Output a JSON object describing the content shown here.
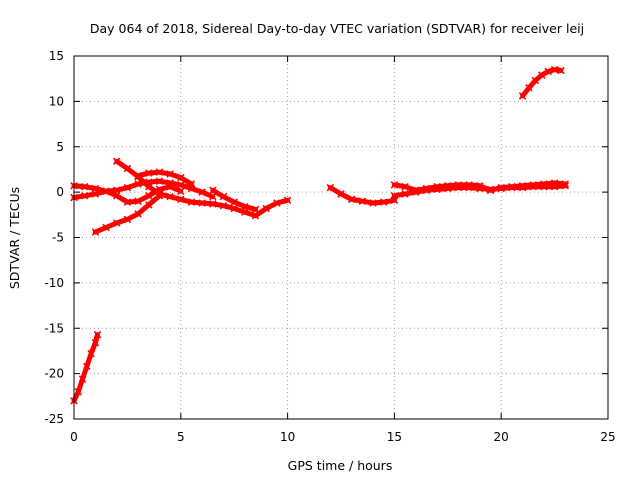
{
  "chart_data": {
    "type": "scatter",
    "title": "Day 064 of 2018, Sidereal Day-to-day VTEC variation (SDTVAR) for receiver leij",
    "xlabel": "GPS time / hours",
    "ylabel": "SDTVAR / TECUs",
    "xlim": [
      0,
      25
    ],
    "ylim": [
      -25,
      15
    ],
    "xticks": [
      "0",
      "5",
      "10",
      "15",
      "20",
      "25"
    ],
    "yticks": [
      "15",
      "10",
      "5",
      "0",
      "-5",
      "-10",
      "-15",
      "-20",
      "-25"
    ],
    "grid": true,
    "marker_color": "#ff0000",
    "series": [
      {
        "x": [
          0.0,
          0.2,
          0.4,
          0.6,
          0.8,
          1.0,
          1.1
        ],
        "y": [
          -23.0,
          -22.0,
          -20.6,
          -19.2,
          -17.8,
          -16.6,
          -15.7
        ]
      },
      {
        "x": [
          1.0,
          1.5,
          2.0,
          2.5,
          3.0,
          3.5,
          4.0
        ],
        "y": [
          -4.4,
          -3.9,
          -3.4,
          -3.0,
          -2.4,
          -1.4,
          -0.4
        ]
      },
      {
        "x": [
          0.0,
          0.5,
          1.0,
          1.5,
          2.0,
          2.5,
          3.0,
          3.5,
          4.0,
          4.5,
          5.0,
          5.5,
          6.0,
          6.5
        ],
        "y": [
          0.7,
          0.6,
          0.4,
          0.1,
          0.2,
          0.5,
          0.9,
          1.1,
          1.2,
          1.0,
          0.8,
          0.4,
          0.0,
          -0.5
        ]
      },
      {
        "x": [
          0.0,
          0.5,
          1.0,
          1.5,
          2.0,
          2.5,
          3.0,
          3.5,
          4.0,
          4.5,
          5.0
        ],
        "y": [
          -0.6,
          -0.4,
          -0.2,
          0.1,
          -0.4,
          -1.1,
          -1.0,
          -0.4,
          0.3,
          0.6,
          0.1
        ]
      },
      {
        "x": [
          2.0,
          2.5,
          3.0,
          3.5,
          4.0,
          4.5,
          5.0,
          5.5,
          6.0,
          6.5,
          7.0,
          7.5,
          8.0,
          8.5,
          9.0,
          9.5,
          10.0
        ],
        "y": [
          3.4,
          2.6,
          1.7,
          0.6,
          -0.2,
          -0.5,
          -0.8,
          -1.1,
          -1.2,
          -1.3,
          -1.5,
          -1.8,
          -2.2,
          -2.6,
          -1.8,
          -1.2,
          -0.9
        ]
      },
      {
        "x": [
          3.0,
          3.5,
          4.0,
          4.5,
          5.0,
          5.5
        ],
        "y": [
          1.8,
          2.1,
          2.2,
          2.0,
          1.6,
          0.9
        ]
      },
      {
        "x": [
          6.5,
          7.0,
          7.5,
          8.0,
          8.5
        ],
        "y": [
          0.2,
          -0.5,
          -1.1,
          -1.6,
          -1.9
        ]
      },
      {
        "x": [
          12.0,
          12.5,
          13.0,
          13.5,
          14.0,
          14.5,
          15.0
        ],
        "y": [
          0.5,
          -0.2,
          -0.8,
          -1.0,
          -1.2,
          -1.1,
          -0.9
        ]
      },
      {
        "x": [
          15.0,
          15.5,
          16.0,
          16.5,
          17.0,
          17.5,
          18.0,
          18.5,
          19.0,
          19.5,
          20.0,
          20.5,
          21.0,
          21.5,
          22.0,
          22.5,
          23.0
        ],
        "y": [
          -0.4,
          -0.2,
          0.0,
          0.2,
          0.3,
          0.4,
          0.5,
          0.5,
          0.4,
          0.3,
          0.4,
          0.5,
          0.5,
          0.6,
          0.6,
          0.6,
          0.7
        ]
      },
      {
        "x": [
          15.0,
          15.5,
          16.0,
          16.5,
          17.0,
          17.5,
          18.0,
          18.5,
          19.0,
          19.5,
          20.0,
          20.5,
          21.0,
          21.5,
          22.0,
          22.5,
          23.0
        ],
        "y": [
          0.8,
          0.6,
          0.2,
          0.4,
          0.6,
          0.7,
          0.8,
          0.8,
          0.7,
          0.2,
          0.5,
          0.6,
          0.7,
          0.8,
          0.9,
          1.0,
          0.9
        ]
      },
      {
        "x": [
          21.0,
          21.3,
          21.6,
          21.9,
          22.2,
          22.5,
          22.8
        ],
        "y": [
          10.6,
          11.5,
          12.3,
          12.9,
          13.3,
          13.5,
          13.4
        ]
      }
    ]
  }
}
